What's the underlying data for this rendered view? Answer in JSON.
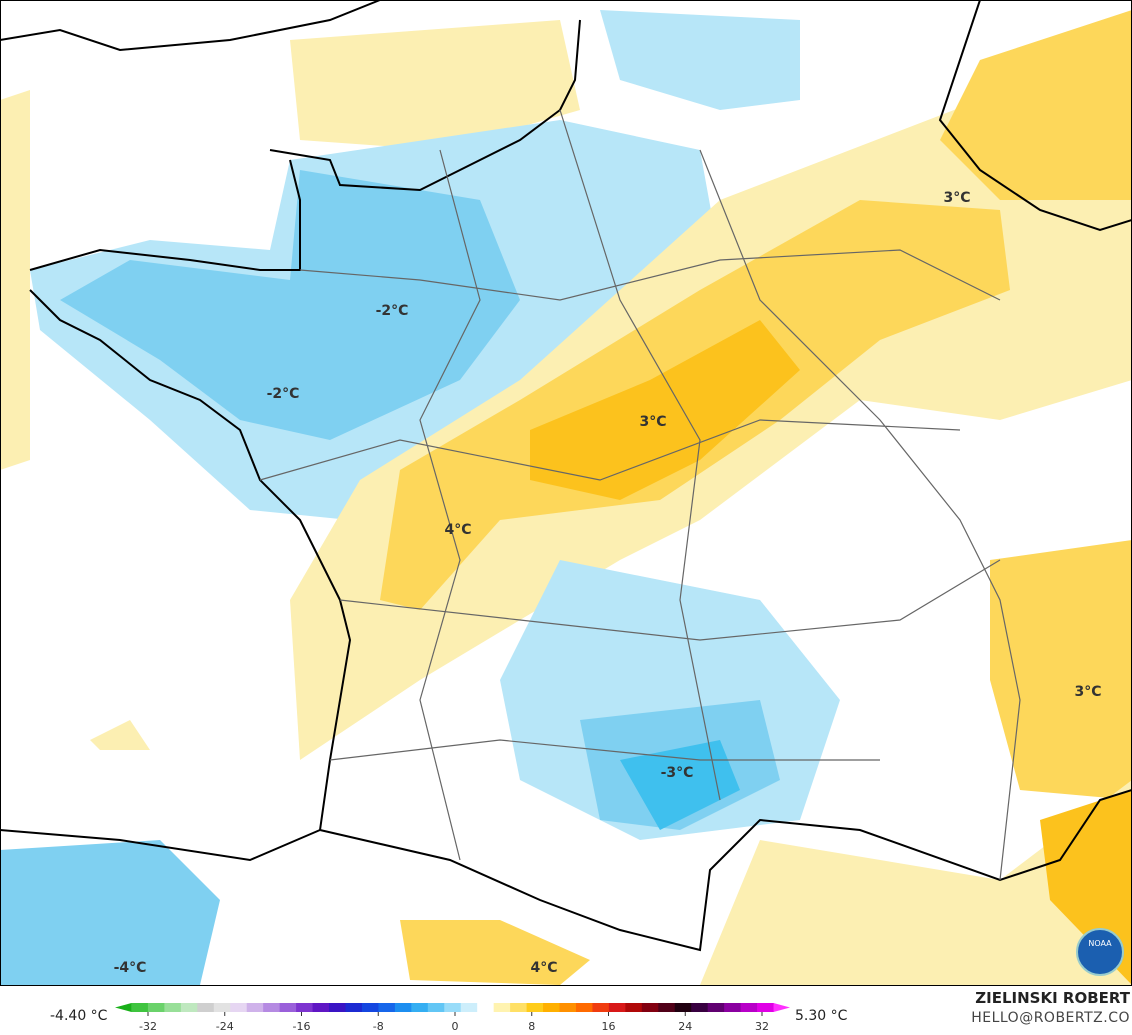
{
  "map": {
    "labels": [
      "-2°C",
      "-2°C",
      "3°C",
      "3°C",
      "4°C",
      "3°C",
      "-3°C",
      "-4°C",
      "4°C"
    ]
  },
  "colorbar": {
    "min_label": "-4.40 °C",
    "max_label": "5.30 °C",
    "ticks": [
      -32,
      -24,
      -16,
      -8,
      0,
      8,
      16,
      24,
      32
    ],
    "colors": [
      "#19b019",
      "#3fc43f",
      "#6ad26a",
      "#98df98",
      "#bfe8bf",
      "#cfcfcf",
      "#e2e2e2",
      "#e6d6f2",
      "#cfb2ea",
      "#b58ae2",
      "#9a60da",
      "#7d34d0",
      "#5f16c4",
      "#3a14c4",
      "#1c2ad2",
      "#1446e0",
      "#1666ea",
      "#1c8ef0",
      "#34aef2",
      "#62c6f5",
      "#98dcf9",
      "#cdeefb",
      "#ffffff",
      "#fff3b0",
      "#ffe066",
      "#ffcc1a",
      "#ffb000",
      "#ff9000",
      "#ff6a00",
      "#f03c10",
      "#d81818",
      "#b00808",
      "#820010",
      "#500018",
      "#200010",
      "#380040",
      "#600070",
      "#8a00a0",
      "#b800c8",
      "#e000e6",
      "#ff30ff"
    ]
  },
  "credits": {
    "author": "ZIELINSKI ROBERT",
    "email": "HELLO@ROBERTZ.CO",
    "logo": "NOAA"
  }
}
